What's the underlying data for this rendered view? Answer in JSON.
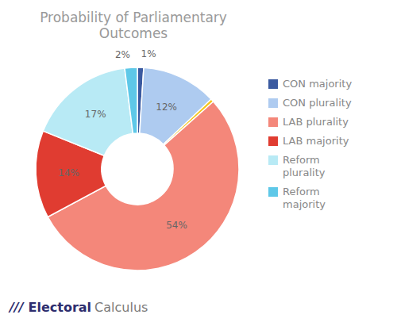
{
  "chart_data": {
    "type": "pie",
    "title": "Probability of Parliamentary Outcomes",
    "categories": [
      "CON majority",
      "CON plurality",
      null,
      "LAB plurality",
      "LAB majority",
      "Reform\nplurality",
      "Reform\nmajority"
    ],
    "values": [
      1,
      12,
      0.5,
      54,
      14,
      17,
      2
    ],
    "value_labels": [
      "1%",
      "12%",
      null,
      "54%",
      "14%",
      "17%",
      "2%"
    ],
    "colors": [
      "#3B5AA0",
      "#AECBF0",
      "#F5C518",
      "#F4877A",
      "#E03C31",
      "#B8EAF5",
      "#5EC8E8"
    ],
    "data_labels": true,
    "legend": "right",
    "annotations": [
      "///",
      "Electoral",
      "Calculus"
    ]
  }
}
